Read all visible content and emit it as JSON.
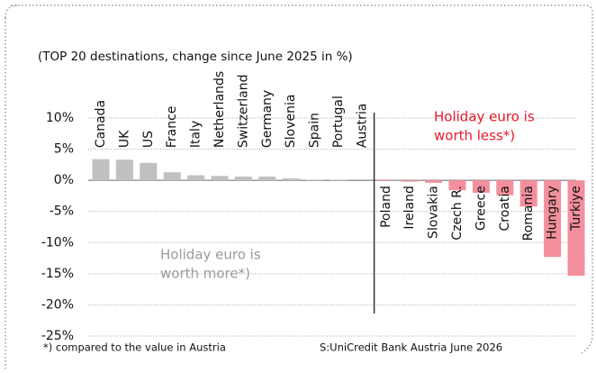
{
  "chart_data": {
    "type": "bar",
    "title": "(TOP 20 destinations, change since June 2025 in %)",
    "categories": [
      "Canada",
      "UK",
      "US",
      "France",
      "Italy",
      "Netherlands",
      "Switzerland",
      "Germany",
      "Slovenia",
      "Spain",
      "Portugal",
      "Austria",
      "Poland",
      "Ireland",
      "Slovakia",
      "Czech R.",
      "Greece",
      "Croatia",
      "Romania",
      "Hungary",
      "Turkiye"
    ],
    "values": [
      3.4,
      3.3,
      2.8,
      1.3,
      0.8,
      0.7,
      0.6,
      0.6,
      0.3,
      0.1,
      0.1,
      0,
      -0.1,
      -0.2,
      -0.4,
      -1.6,
      -2.0,
      -2.4,
      -4.2,
      -12.3,
      -15.3
    ],
    "positive_color": "#c0c0c0",
    "negative_color": "#f4909d",
    "ylim": [
      -25,
      10
    ],
    "yticks": [
      {
        "value": 10,
        "label": "10%"
      },
      {
        "value": 5,
        "label": "5%"
      },
      {
        "value": 0,
        "label": "0%"
      },
      {
        "value": -5,
        "label": "-5%"
      },
      {
        "value": -10,
        "label": "-10%"
      },
      {
        "value": -15,
        "label": "-15%"
      },
      {
        "value": -20,
        "label": "-20%"
      },
      {
        "value": -25,
        "label": "-25%"
      }
    ],
    "grid": true,
    "annotations": [
      {
        "lines": [
          "Holiday euro is",
          "worth less*)"
        ],
        "color": "#e8192c"
      },
      {
        "lines": [
          "Holiday euro is",
          "worth more*)"
        ],
        "color": "#9a9a9a"
      }
    ],
    "footnote": "*) compared to the value in Austria",
    "source": "S:UniCredit Bank Austria June 2026"
  }
}
